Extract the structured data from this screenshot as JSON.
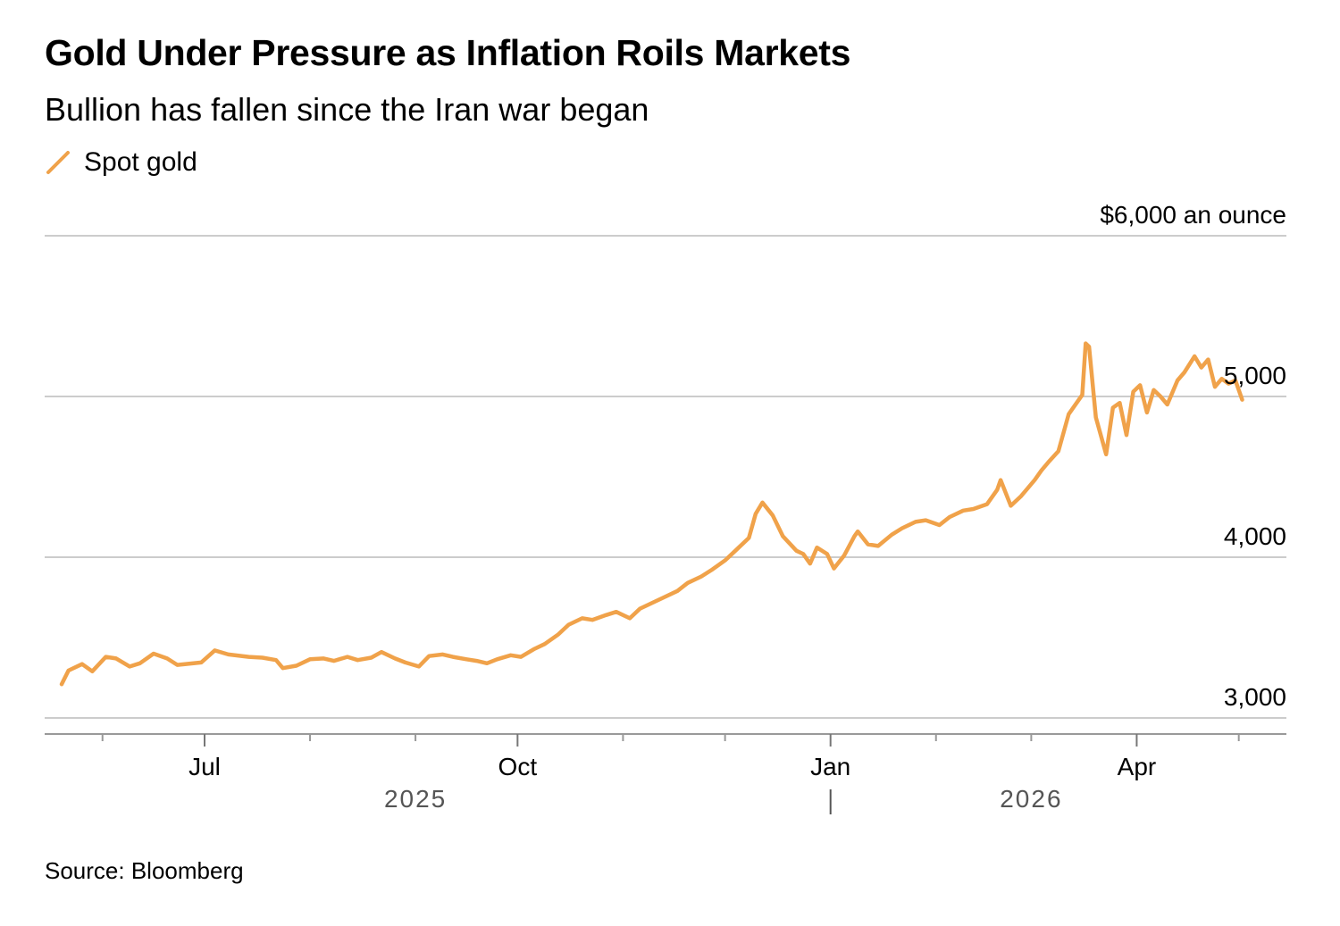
{
  "header": {
    "title": "Gold Under Pressure as Inflation Roils Markets",
    "subtitle": "Bullion has fallen since the Iran war began"
  },
  "footer": {
    "source": "Source: Bloomberg"
  },
  "colors": {
    "line": "#F0A24A",
    "grid": "#cccccc",
    "axis": "#999999"
  },
  "chart_data": {
    "type": "line",
    "title": "Gold Under Pressure as Inflation Roils Markets",
    "subtitle": "Bullion has fallen since the Iran war began",
    "ylabel": "$6,000 an ounce",
    "ylim": [
      2900,
      6000
    ],
    "y_ticks": [
      {
        "value": 6000,
        "label": "$6,000 an ounce"
      },
      {
        "value": 5000,
        "label": "5,000"
      },
      {
        "value": 4000,
        "label": "4,000"
      },
      {
        "value": 3000,
        "label": "3,000"
      }
    ],
    "x_range": [
      "2025-05-15",
      "2026-05-15"
    ],
    "x_ticks": [
      {
        "date": "2025-07-01",
        "label": "Jul"
      },
      {
        "date": "2025-10-01",
        "label": "Oct"
      },
      {
        "date": "2026-01-01",
        "label": "Jan"
      },
      {
        "date": "2026-04-01",
        "label": "Apr"
      }
    ],
    "x_minor_ticks": [
      "2025-06-01",
      "2025-08-01",
      "2025-09-01",
      "2025-11-01",
      "2025-12-01",
      "2026-02-01",
      "2026-03-01",
      "2026-05-01"
    ],
    "year_labels": [
      {
        "date": "2025-09-01",
        "label": "2025"
      },
      {
        "date": "2026-03-01",
        "label": "2026"
      }
    ],
    "year_divider": "2026-01-01",
    "grid": true,
    "legend": "top-left",
    "series": [
      {
        "name": "Spot gold",
        "color": "#F0A24A",
        "points": [
          [
            "2025-05-20",
            3210
          ],
          [
            "2025-05-22",
            3295
          ],
          [
            "2025-05-26",
            3335
          ],
          [
            "2025-05-29",
            3290
          ],
          [
            "2025-06-02",
            3380
          ],
          [
            "2025-06-05",
            3370
          ],
          [
            "2025-06-09",
            3320
          ],
          [
            "2025-06-12",
            3340
          ],
          [
            "2025-06-16",
            3400
          ],
          [
            "2025-06-20",
            3370
          ],
          [
            "2025-06-23",
            3330
          ],
          [
            "2025-06-30",
            3345
          ],
          [
            "2025-07-04",
            3420
          ],
          [
            "2025-07-08",
            3395
          ],
          [
            "2025-07-14",
            3380
          ],
          [
            "2025-07-18",
            3375
          ],
          [
            "2025-07-22",
            3360
          ],
          [
            "2025-07-24",
            3310
          ],
          [
            "2025-07-28",
            3325
          ],
          [
            "2025-08-01",
            3365
          ],
          [
            "2025-08-05",
            3370
          ],
          [
            "2025-08-08",
            3355
          ],
          [
            "2025-08-12",
            3380
          ],
          [
            "2025-08-15",
            3360
          ],
          [
            "2025-08-19",
            3375
          ],
          [
            "2025-08-22",
            3410
          ],
          [
            "2025-08-26",
            3370
          ],
          [
            "2025-08-29",
            3345
          ],
          [
            "2025-09-02",
            3320
          ],
          [
            "2025-09-05",
            3385
          ],
          [
            "2025-09-09",
            3395
          ],
          [
            "2025-09-12",
            3380
          ],
          [
            "2025-09-16",
            3365
          ],
          [
            "2025-09-19",
            3355
          ],
          [
            "2025-09-22",
            3340
          ],
          [
            "2025-09-25",
            3365
          ],
          [
            "2025-09-29",
            3390
          ],
          [
            "2025-10-02",
            3380
          ],
          [
            "2025-10-06",
            3430
          ],
          [
            "2025-10-09",
            3460
          ],
          [
            "2025-10-13",
            3520
          ],
          [
            "2025-10-16",
            3580
          ],
          [
            "2025-10-20",
            3620
          ],
          [
            "2025-10-23",
            3610
          ],
          [
            "2025-10-27",
            3640
          ],
          [
            "2025-10-30",
            3660
          ],
          [
            "2025-11-03",
            3620
          ],
          [
            "2025-11-06",
            3680
          ],
          [
            "2025-11-10",
            3720
          ],
          [
            "2025-11-13",
            3750
          ],
          [
            "2025-11-17",
            3790
          ],
          [
            "2025-11-20",
            3840
          ],
          [
            "2025-11-24",
            3880
          ],
          [
            "2025-11-27",
            3920
          ],
          [
            "2025-12-01",
            3980
          ],
          [
            "2025-12-04",
            4040
          ],
          [
            "2025-12-08",
            4120
          ],
          [
            "2025-12-10",
            4270
          ],
          [
            "2025-12-12",
            4340
          ],
          [
            "2025-12-15",
            4260
          ],
          [
            "2025-12-18",
            4130
          ],
          [
            "2025-12-22",
            4040
          ],
          [
            "2025-12-24",
            4020
          ],
          [
            "2025-12-26",
            3960
          ],
          [
            "2025-12-28",
            4060
          ],
          [
            "2025-12-31",
            4020
          ],
          [
            "2026-01-02",
            3930
          ],
          [
            "2026-01-05",
            4010
          ],
          [
            "2026-01-08",
            4130
          ],
          [
            "2026-01-09",
            4160
          ],
          [
            "2026-01-12",
            4080
          ],
          [
            "2026-01-15",
            4070
          ],
          [
            "2026-01-19",
            4140
          ],
          [
            "2026-01-22",
            4180
          ],
          [
            "2026-01-26",
            4220
          ],
          [
            "2026-01-29",
            4230
          ],
          [
            "2026-02-02",
            4200
          ],
          [
            "2026-02-05",
            4250
          ],
          [
            "2026-02-09",
            4290
          ],
          [
            "2026-02-12",
            4300
          ],
          [
            "2026-02-16",
            4330
          ],
          [
            "2026-02-19",
            4420
          ],
          [
            "2026-02-20",
            4480
          ],
          [
            "2026-02-23",
            4320
          ],
          [
            "2026-02-26",
            4380
          ],
          [
            "2026-03-02",
            4480
          ],
          [
            "2026-03-04",
            4540
          ],
          [
            "2026-03-06",
            4590
          ],
          [
            "2026-03-09",
            4660
          ],
          [
            "2026-03-12",
            4890
          ],
          [
            "2026-03-16",
            5010
          ],
          [
            "2026-03-17",
            5330
          ],
          [
            "2026-03-18",
            5310
          ],
          [
            "2026-03-20",
            4870
          ],
          [
            "2026-03-23",
            4640
          ],
          [
            "2026-03-25",
            4930
          ],
          [
            "2026-03-27",
            4960
          ],
          [
            "2026-03-29",
            4760
          ],
          [
            "2026-03-31",
            5030
          ],
          [
            "2026-04-02",
            5070
          ],
          [
            "2026-04-04",
            4900
          ],
          [
            "2026-04-06",
            5040
          ],
          [
            "2026-04-08",
            5000
          ],
          [
            "2026-04-10",
            4950
          ],
          [
            "2026-04-13",
            5100
          ],
          [
            "2026-04-15",
            5150
          ],
          [
            "2026-04-18",
            5250
          ],
          [
            "2026-04-20",
            5180
          ],
          [
            "2026-04-22",
            5230
          ],
          [
            "2026-04-24",
            5060
          ],
          [
            "2026-04-26",
            5110
          ],
          [
            "2026-04-28",
            5080
          ],
          [
            "2026-04-30",
            5100
          ],
          [
            "2026-05-02",
            4980
          ]
        ]
      }
    ]
  }
}
